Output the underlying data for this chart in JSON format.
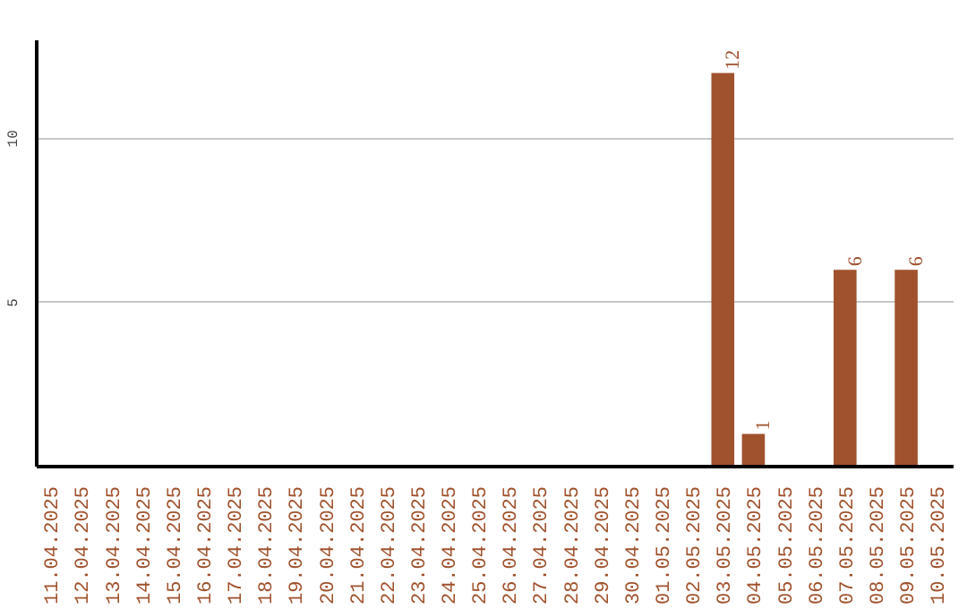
{
  "chart_data": {
    "type": "bar",
    "categories": [
      "11.04.2025",
      "12.04.2025",
      "13.04.2025",
      "14.04.2025",
      "15.04.2025",
      "16.04.2025",
      "17.04.2025",
      "18.04.2025",
      "19.04.2025",
      "20.04.2025",
      "21.04.2025",
      "22.04.2025",
      "23.04.2025",
      "24.04.2025",
      "25.04.2025",
      "26.04.2025",
      "27.04.2025",
      "28.04.2025",
      "29.04.2025",
      "30.04.2025",
      "01.05.2025",
      "02.05.2025",
      "03.05.2025",
      "04.05.2025",
      "05.05.2025",
      "06.05.2025",
      "07.05.2025",
      "08.05.2025",
      "09.05.2025",
      "10.05.2025"
    ],
    "values": [
      0,
      0,
      0,
      0,
      0,
      0,
      0,
      0,
      0,
      0,
      0,
      0,
      0,
      0,
      0,
      0,
      0,
      0,
      0,
      0,
      0,
      0,
      12,
      1,
      0,
      0,
      6,
      0,
      6,
      0
    ],
    "value_labels": [
      null,
      null,
      null,
      null,
      null,
      null,
      null,
      null,
      null,
      null,
      null,
      null,
      null,
      null,
      null,
      null,
      null,
      null,
      null,
      null,
      null,
      null,
      "12",
      "1",
      null,
      null,
      "6",
      null,
      "6",
      null
    ],
    "color": "#a0522d",
    "ylim": [
      0,
      13
    ],
    "yticks": [
      5,
      10
    ],
    "grid": "y"
  }
}
